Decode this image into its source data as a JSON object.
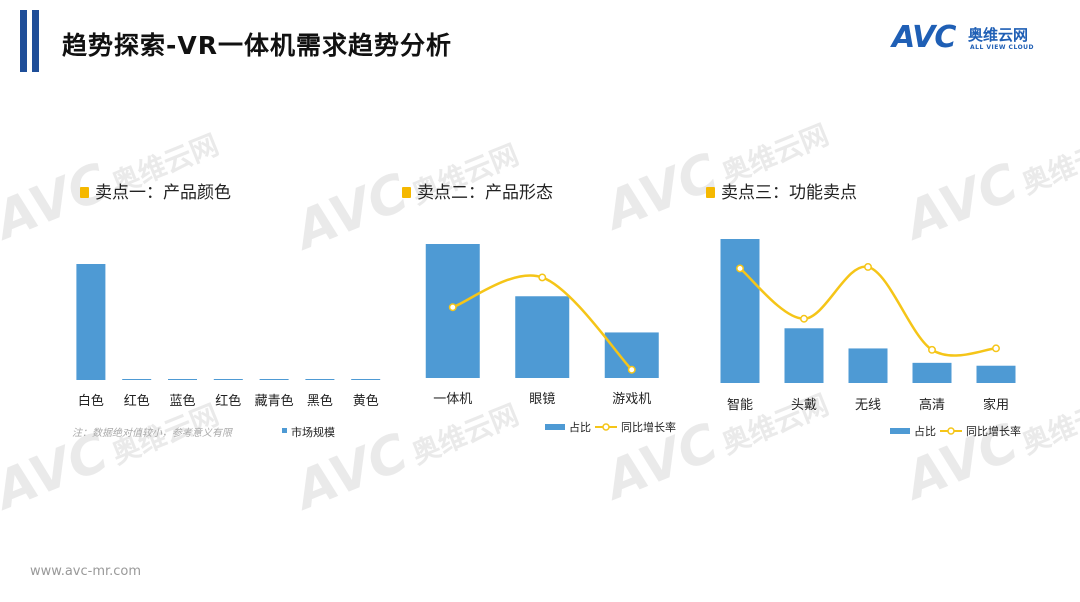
{
  "header": {
    "title": "趋势探索-VR一体机需求趋势分析"
  },
  "logo": {
    "mark": "AVC",
    "name_cn": "奥维云网",
    "name_en": "ALL VIEW CLOUD"
  },
  "watermark": {
    "mark": "AVC",
    "cn": "奥维云网",
    "en": "ALL VIEW CLOUD"
  },
  "sections": [
    {
      "title": "卖点一：产品颜色"
    },
    {
      "title": "卖点二：产品形态"
    },
    {
      "title": "卖点三：功能卖点"
    }
  ],
  "colors": {
    "bar": "#4e9ad4",
    "line": "#f5c518",
    "accent": "#1f4e99"
  },
  "chart_data": [
    {
      "type": "bar",
      "categories": [
        "白色",
        "红色",
        "蓝色",
        "红色",
        "藏青色",
        "黑色",
        "黄色"
      ],
      "series": [
        {
          "name": "市场规模",
          "values": [
            100,
            0.8,
            0.5,
            0.5,
            0.4,
            0.4,
            0.3
          ]
        }
      ],
      "note": "注：数据绝对值较小，参考意义有限",
      "ylim": [
        0,
        100
      ]
    },
    {
      "type": "bar",
      "categories": [
        "一体机",
        "眼镜",
        "游戏机"
      ],
      "series": [
        {
          "name": "占比",
          "values": [
            100,
            61,
            34
          ],
          "kind": "bar"
        },
        {
          "name": "同比增长率",
          "values": [
            47,
            68,
            3
          ],
          "kind": "line"
        }
      ],
      "ylim": [
        0,
        100
      ]
    },
    {
      "type": "bar",
      "categories": [
        "智能",
        "头戴",
        "无线",
        "高清",
        "家用"
      ],
      "series": [
        {
          "name": "占比",
          "values": [
            100,
            38,
            24,
            14,
            12
          ],
          "kind": "bar"
        },
        {
          "name": "同比增长率",
          "values": [
            72,
            38,
            73,
            17,
            18
          ],
          "kind": "line"
        }
      ],
      "ylim": [
        0,
        100
      ]
    }
  ],
  "footer": {
    "url": "www.avc-mr.com"
  }
}
